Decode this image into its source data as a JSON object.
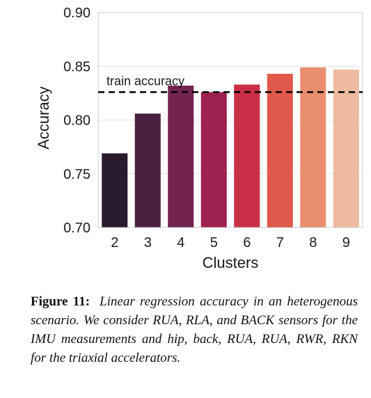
{
  "chart_data": {
    "type": "bar",
    "categories": [
      "2",
      "3",
      "4",
      "5",
      "6",
      "7",
      "8",
      "9"
    ],
    "values": [
      0.769,
      0.806,
      0.832,
      0.826,
      0.833,
      0.843,
      0.849,
      0.847
    ],
    "colors": [
      "#2a1a2e",
      "#4a2040",
      "#72234f",
      "#9e2150",
      "#c93048",
      "#e0594a",
      "#e98f70",
      "#eebba0"
    ],
    "xlabel": "Clusters",
    "ylabel": "Accuracy",
    "ylim": [
      0.7,
      0.9
    ],
    "yticks": [
      "0.70",
      "0.75",
      "0.80",
      "0.85",
      "0.90"
    ],
    "ytick_values": [
      0.7,
      0.75,
      0.8,
      0.85,
      0.9
    ],
    "reference_line": {
      "value": 0.826,
      "label": "train accuracy",
      "style": "dashed"
    },
    "grid": "horizontal",
    "legend": "none"
  },
  "caption": {
    "label": "Figure 11:",
    "text": "Linear regression accuracy in an heterogenous scenario. We consider RUA, RLA, and BACK sensors for the IMU measurements and hip, back, RUA, RUA, RWR, RKN for the triaxial accelerators."
  }
}
